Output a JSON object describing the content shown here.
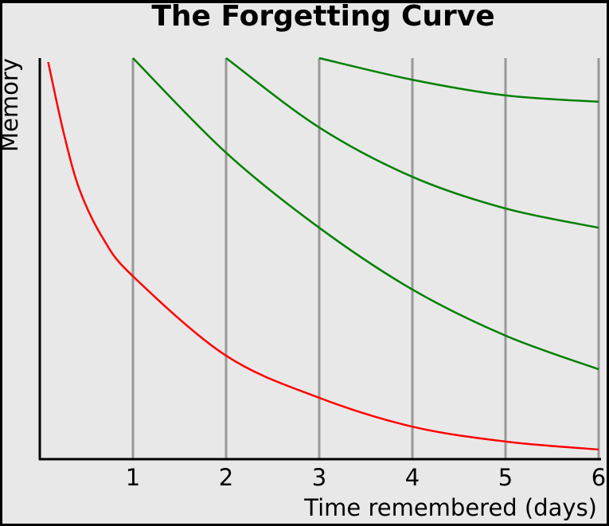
{
  "chart_data": {
    "type": "line",
    "title": "The Forgetting Curve",
    "xlabel": "Time remembered (days)",
    "ylabel": "Memory",
    "xlim": [
      0,
      6
    ],
    "ylim": [
      0,
      100
    ],
    "xticks": [
      1,
      2,
      3,
      4,
      5,
      6
    ],
    "grid": true,
    "series": [
      {
        "color": "#ff0000",
        "x": [
          0.09,
          0.26,
          0.43,
          0.68,
          1,
          2,
          3,
          4,
          5,
          6
        ],
        "values": [
          99,
          81,
          67,
          55,
          45.6,
          25.8,
          15.3,
          8.1,
          4.4,
          2.4
        ]
      },
      {
        "color": "#008000",
        "x": [
          1,
          2,
          3,
          4,
          5,
          6
        ],
        "values": [
          100,
          76.4,
          57.7,
          42.3,
          30.8,
          22.4
        ]
      },
      {
        "color": "#008000",
        "x": [
          2,
          3,
          4,
          5,
          6
        ],
        "values": [
          100,
          82.7,
          70.4,
          62.5,
          57.7
        ]
      },
      {
        "color": "#008000",
        "x": [
          3,
          4,
          5,
          6
        ],
        "values": [
          100,
          94.6,
          90.7,
          89.1
        ]
      }
    ]
  }
}
